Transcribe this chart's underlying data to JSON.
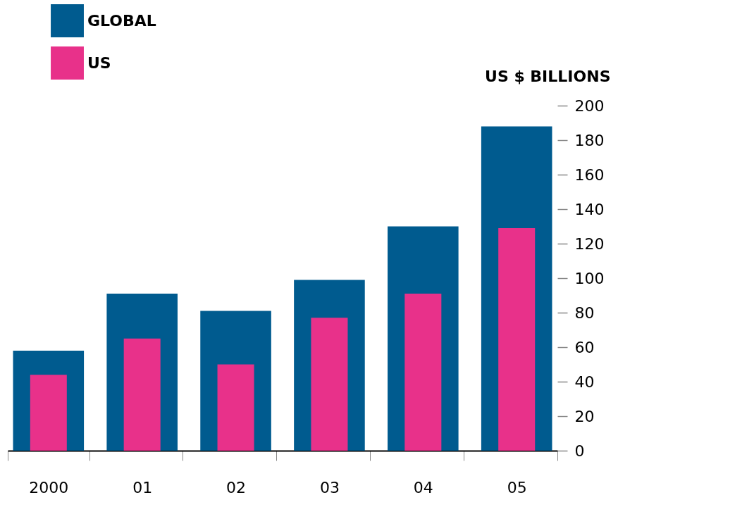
{
  "chart_data": {
    "type": "bar",
    "ylabel": "US $ BILLIONS",
    "categories": [
      "2000",
      "01",
      "02",
      "03",
      "04",
      "05"
    ],
    "series": [
      {
        "name": "GLOBAL",
        "color": "#005b8f",
        "values": [
          58,
          91,
          81,
          99,
          130,
          188
        ]
      },
      {
        "name": "US",
        "color": "#e8318a",
        "values": [
          44,
          65,
          50,
          77,
          91,
          129
        ]
      }
    ],
    "ylim": [
      0,
      200
    ],
    "yticks": [
      0,
      20,
      40,
      60,
      80,
      100,
      120,
      140,
      160,
      180,
      200
    ],
    "grid": false,
    "legend": "top left"
  }
}
